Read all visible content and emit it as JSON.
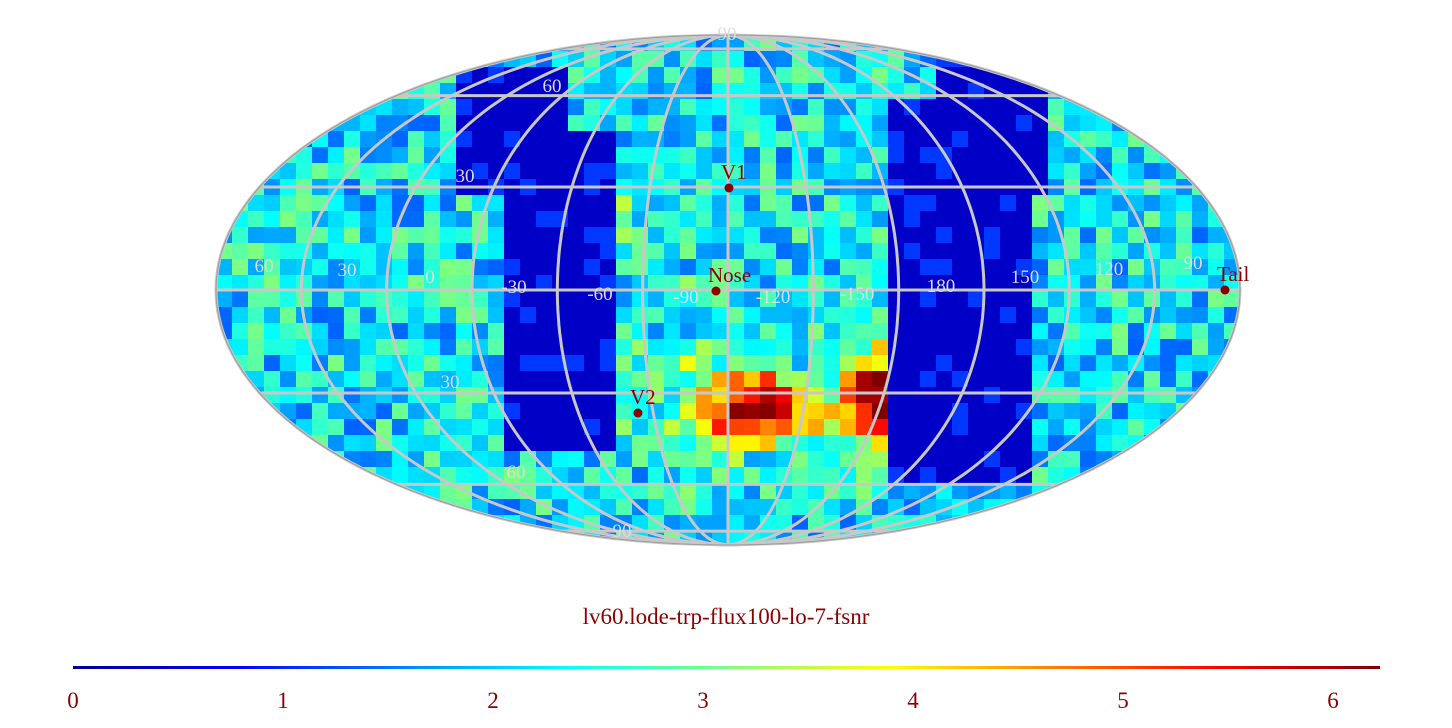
{
  "map": {
    "projection": "mollweide",
    "grid": true,
    "grid_color": "#c8c8c8",
    "marker_color": "#8b0000",
    "lat_labels": [
      "90",
      "60",
      "30",
      "30",
      "60",
      "90"
    ],
    "lon_labels": [
      "60",
      "30",
      "0",
      "-30",
      "-60",
      "-90",
      "-120",
      "-150",
      "180",
      "150",
      "120",
      "90"
    ],
    "markers": [
      {
        "label": "V1",
        "lon": -90,
        "lat": 35
      },
      {
        "label": "Nose",
        "lon": -95,
        "lat": 5
      },
      {
        "label": "V2",
        "lon": -110,
        "lat": -33
      },
      {
        "label": "Tail",
        "lon": 85,
        "lat": -5
      }
    ]
  },
  "title": "lv60.lode-trp-flux100-lo-7-fsnr",
  "colorbar": {
    "colormap": "jet",
    "min": 0,
    "max": 6.2,
    "tick_labels": [
      "0",
      "1",
      "2",
      "3",
      "4",
      "5",
      "6"
    ],
    "label_color": "#8b0000"
  }
}
